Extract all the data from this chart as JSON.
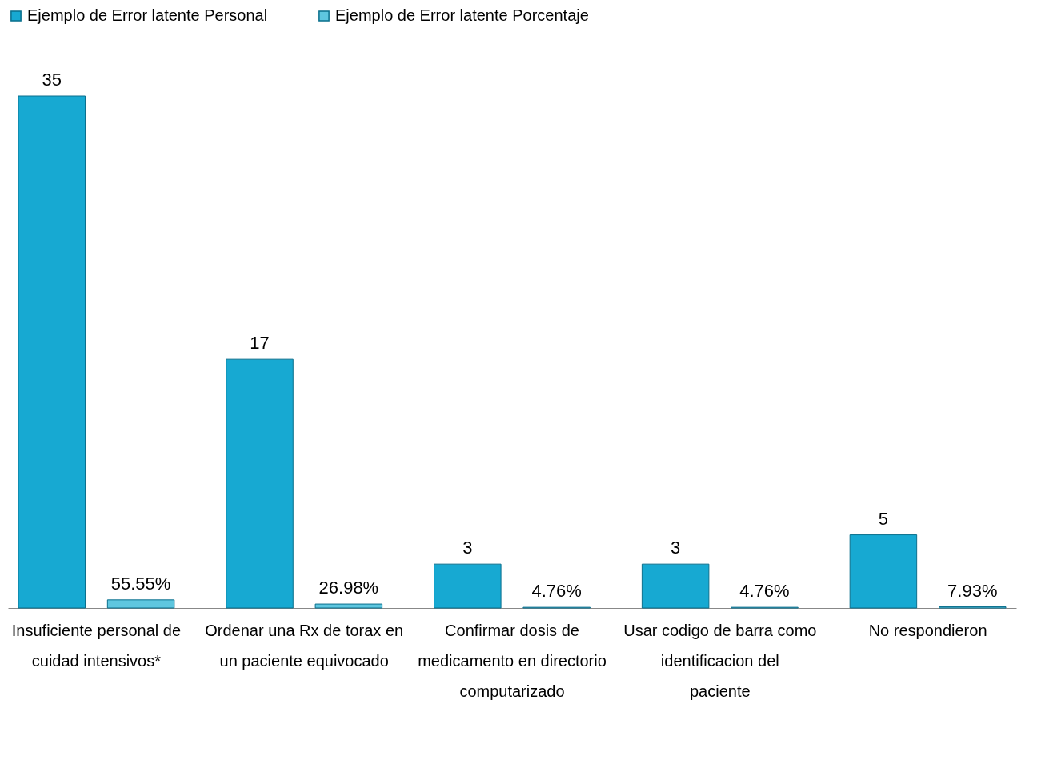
{
  "chart_data": {
    "type": "bar",
    "categories": [
      "Insuficiente personal de cuidad intensivos*",
      "Ordenar una Rx de torax en un paciente equivocado",
      "Confirmar dosis de medicamento en directorio computarizado",
      "Usar codigo de barra como identificacion del paciente",
      "No respondieron"
    ],
    "series": [
      {
        "name": "Ejemplo de Error latente Personal",
        "color": "#17a9d2",
        "values": [
          35,
          17,
          3,
          3,
          5
        ],
        "value_labels": [
          "35",
          "17",
          "3",
          "3",
          "5"
        ]
      },
      {
        "name": "Ejemplo de Error latente Porcentaje",
        "color": "#5ec6df",
        "values": [
          0.5555,
          0.2698,
          0.0476,
          0.0476,
          0.0793
        ],
        "value_labels": [
          "55.55%",
          "26.98%",
          "4.76%",
          "4.76%",
          "7.93%"
        ]
      }
    ],
    "legend": "top",
    "grid": false
  }
}
